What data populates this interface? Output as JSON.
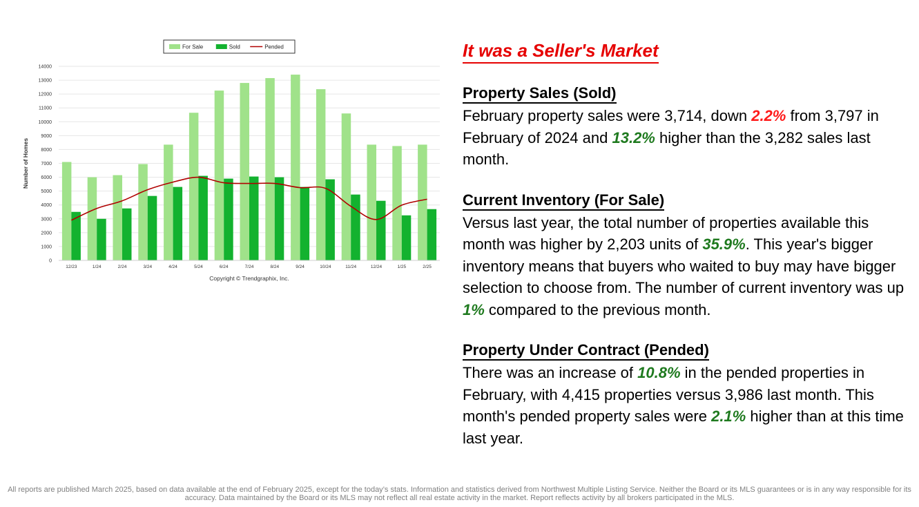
{
  "chart_data": {
    "type": "bar",
    "ylabel": "Number of Homes",
    "copyright": "Copyright © Trendgraphix, Inc.",
    "categories": [
      "12/23",
      "1/24",
      "2/24",
      "3/24",
      "4/24",
      "5/24",
      "6/24",
      "7/24",
      "8/24",
      "9/24",
      "10/24",
      "11/24",
      "12/24",
      "1/25",
      "2/25"
    ],
    "ylim": [
      0,
      14000
    ],
    "yticks": [
      0,
      1000,
      2000,
      3000,
      4000,
      5000,
      6000,
      7000,
      8000,
      9000,
      10000,
      11000,
      12000,
      13000,
      14000
    ],
    "grid": true,
    "legend_position": "top-center",
    "series": [
      {
        "name": "For Sale",
        "kind": "bar",
        "color": "#a0e28a",
        "values": [
          7100,
          6000,
          6150,
          6950,
          8350,
          10650,
          12250,
          12800,
          13150,
          13400,
          12350,
          10600,
          8350,
          8250,
          8350
        ]
      },
      {
        "name": "Sold",
        "kind": "bar",
        "color": "#13b22f",
        "values": [
          3500,
          3000,
          3750,
          4650,
          5300,
          6100,
          5900,
          6050,
          6000,
          5300,
          5850,
          4750,
          4300,
          3250,
          3700
        ]
      },
      {
        "name": "Pended",
        "kind": "line",
        "color": "#b00000",
        "values": [
          2900,
          3750,
          4300,
          5100,
          5650,
          6000,
          5600,
          5550,
          5550,
          5250,
          5200,
          3900,
          2950,
          3986,
          4415
        ]
      }
    ]
  },
  "headline": "It was a Seller's Market",
  "sections": [
    {
      "title": "Property Sales (Sold)",
      "p1": "February property sales were 3,714, down ",
      "h1": "2.2%",
      "p2": " from 3,797 in February of 2024 and ",
      "h2": "13.2%",
      "p3": " higher than the 3,282 sales last month."
    },
    {
      "title": "Current Inventory (For Sale)",
      "p1": "Versus last year, the total number of properties available this month was higher by 2,203 units of ",
      "h1": "35.9%",
      "p2": ". This year's bigger inventory means that buyers who waited to buy may have bigger selection to choose from. The number of current inventory was up ",
      "h2": "1%",
      "p3": " compared to the previous month."
    },
    {
      "title": "Property Under Contract (Pended)",
      "p1": "There was an increase of ",
      "h1": "10.8%",
      "p2": " in the pended properties in February, with 4,415 properties versus 3,986 last month. This month's pended property sales were ",
      "h2": "2.1%",
      "p3": " higher than at this time last year."
    }
  ],
  "footer": "All reports are published March 2025, based on data available at the end of February 2025, except for the today’s stats. Information and statistics derived from Northwest Multiple Listing Service. Neither the Board or its MLS guarantees or is in any way responsible for its accuracy. Data maintained by the Board or its MLS may not reflect all real estate activity in the market. Report reflects activity by all brokers participated in the MLS."
}
